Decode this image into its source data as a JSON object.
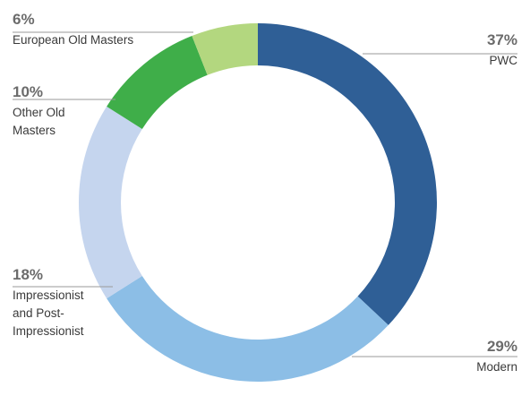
{
  "chart_data": {
    "type": "pie",
    "variant": "donut",
    "title": "",
    "categories": [
      "PWC",
      "Modern",
      "Impressionist and Post-Impressionist",
      "Other Old Masters",
      "European Old Masters"
    ],
    "values": [
      37,
      29,
      18,
      10,
      6
    ],
    "value_labels": [
      "37%",
      "29%",
      "18%",
      "10%",
      "6%"
    ],
    "label_lines": [
      [
        "PWC"
      ],
      [
        "Modern"
      ],
      [
        "Impressionist",
        "and Post-",
        "Impressionist"
      ],
      [
        "Other Old",
        "Masters"
      ],
      [
        "European Old Masters"
      ]
    ],
    "colors": [
      "#2f5f96",
      "#8cbee6",
      "#c5d5ee",
      "#3fae49",
      "#b3d77f"
    ],
    "start": "12 o'clock, clockwise",
    "legend": "none"
  }
}
